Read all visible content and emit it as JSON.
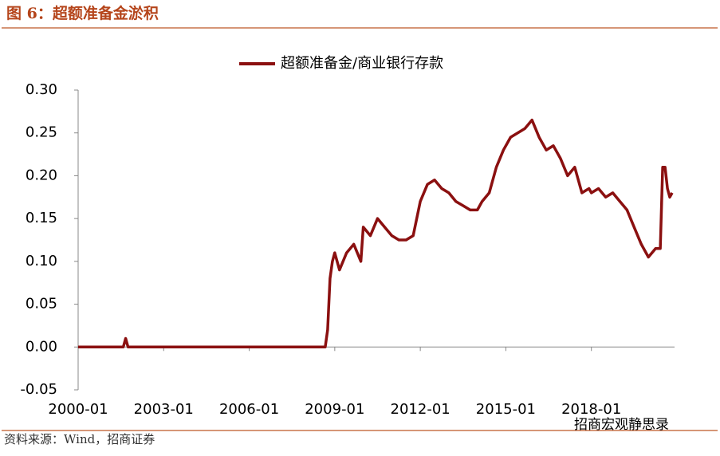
{
  "header": {
    "title": "图 6：超额准备金淤积"
  },
  "chart_data": {
    "type": "line",
    "x": [
      "2000-01",
      "2000-07",
      "2001-01",
      "2001-07",
      "2001-08",
      "2001-09",
      "2001-10",
      "2002-01",
      "2002-07",
      "2003-01",
      "2003-07",
      "2004-01",
      "2004-07",
      "2005-01",
      "2005-07",
      "2006-01",
      "2006-07",
      "2007-01",
      "2007-07",
      "2008-01",
      "2008-07",
      "2008-09",
      "2008-10",
      "2008-11",
      "2008-12",
      "2009-01",
      "2009-03",
      "2009-06",
      "2009-09",
      "2009-12",
      "2010-01",
      "2010-04",
      "2010-07",
      "2010-10",
      "2011-01",
      "2011-04",
      "2011-07",
      "2011-10",
      "2012-01",
      "2012-04",
      "2012-07",
      "2012-10",
      "2013-01",
      "2013-04",
      "2013-07",
      "2013-10",
      "2014-01",
      "2014-03",
      "2014-06",
      "2014-09",
      "2014-12",
      "2015-03",
      "2015-06",
      "2015-09",
      "2015-12",
      "2016-03",
      "2016-06",
      "2016-09",
      "2016-12",
      "2017-03",
      "2017-06",
      "2017-09",
      "2017-12",
      "2018-01",
      "2018-04",
      "2018-07",
      "2018-10",
      "2019-01",
      "2019-04",
      "2019-07",
      "2019-10",
      "2020-01",
      "2020-04",
      "2020-06",
      "2020-07",
      "2020-08",
      "2020-09",
      "2020-10",
      "2020-11"
    ],
    "series": [
      {
        "name": "超额准备金/商业银行存款",
        "color": "#8b1010",
        "values": [
          0,
          0,
          0,
          0,
          0,
          0.01,
          0,
          0,
          0,
          0,
          0,
          0,
          0,
          0,
          0,
          0,
          0,
          0,
          0,
          0,
          0,
          0,
          0.02,
          0.08,
          0.1,
          0.11,
          0.09,
          0.11,
          0.12,
          0.1,
          0.14,
          0.13,
          0.15,
          0.14,
          0.13,
          0.125,
          0.125,
          0.13,
          0.17,
          0.19,
          0.195,
          0.185,
          0.18,
          0.17,
          0.165,
          0.16,
          0.16,
          0.17,
          0.18,
          0.21,
          0.23,
          0.245,
          0.25,
          0.255,
          0.265,
          0.245,
          0.23,
          0.235,
          0.22,
          0.2,
          0.21,
          0.18,
          0.185,
          0.18,
          0.185,
          0.175,
          0.18,
          0.17,
          0.16,
          0.14,
          0.12,
          0.105,
          0.115,
          0.115,
          0.21,
          0.21,
          0.185,
          0.175,
          0.18
        ]
      }
    ],
    "xlim": [
      "2000-01",
      "2020-12"
    ],
    "xticks": [
      "2000-01",
      "2003-01",
      "2006-01",
      "2009-01",
      "2012-01",
      "2015-01",
      "2018-01"
    ],
    "ylim": [
      -0.05,
      0.3
    ],
    "yticks": [
      {
        "value": -0.05,
        "label": "-0.05"
      },
      {
        "value": 0,
        "label": "0.00"
      },
      {
        "value": 0.05,
        "label": "0.05"
      },
      {
        "value": 0.1,
        "label": "0.10"
      },
      {
        "value": 0.15,
        "label": "0.15"
      },
      {
        "value": 0.2,
        "label": "0.20"
      },
      {
        "value": 0.25,
        "label": "0.25"
      },
      {
        "value": 0.3,
        "label": "0.30"
      }
    ]
  },
  "footer": {
    "source": "资料来源：Wind，招商证券",
    "watermark": "招商宏观静思录"
  }
}
